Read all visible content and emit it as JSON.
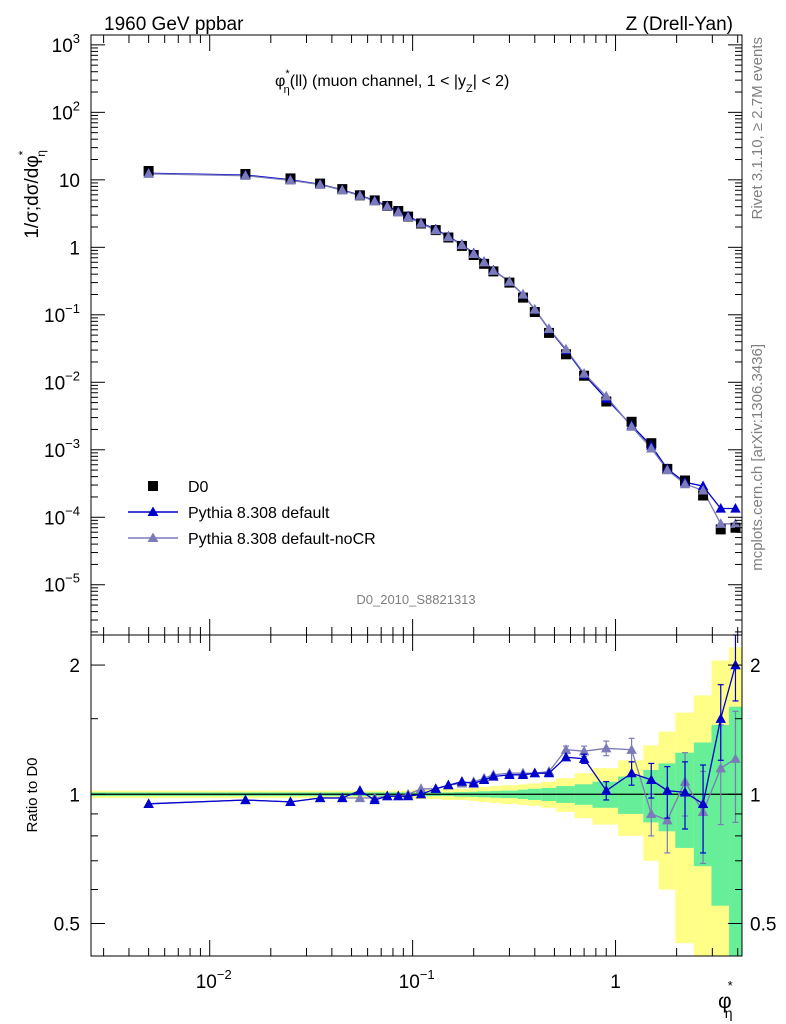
{
  "header": {
    "left": "1960 GeV ppbar",
    "right": "Z (Drell-Yan)"
  },
  "side": {
    "top": "Rivet 3.1.10, ≥ 2.7M events",
    "bottom": "mcplots.cern.ch [arXiv:1306.3436]"
  },
  "chart_data": [
    {
      "type": "scatter",
      "panel": "main",
      "title": "φ*η(ll) (muon channel, 1 < |yZ| < 2)",
      "title_parts": {
        "phi": "φ",
        "star": "*",
        "eta": "η",
        "rest_a": "(ll) (muon channel, 1 < |y",
        "sub_z": "Z",
        "rest_b": "| < 2)"
      },
      "ylabel": "1/σ;dσ/dφ*η",
      "ylabel_parts": {
        "main": "1/σ;dσ/dφ",
        "star": "*",
        "eta": "η"
      },
      "xlabel_parts": {
        "phi": "φ",
        "star": "*",
        "eta": "η"
      },
      "xscale": "log",
      "yscale": "log",
      "xlim": [
        0.0026,
        4.2
      ],
      "ylim": [
        1.8e-06,
        1400.0
      ],
      "y_ticks": [
        {
          "v": 1000.0,
          "base": "10",
          "exp": "3"
        },
        {
          "v": 100.0,
          "base": "10",
          "exp": "2"
        },
        {
          "v": 10,
          "base": "10",
          "exp": ""
        },
        {
          "v": 1,
          "base": "1",
          "exp": ""
        },
        {
          "v": 0.1,
          "base": "10",
          "exp": "−1"
        },
        {
          "v": 0.01,
          "base": "10",
          "exp": "−2"
        },
        {
          "v": 0.001,
          "base": "10",
          "exp": "−3"
        },
        {
          "v": 0.0001,
          "base": "10",
          "exp": "−4"
        },
        {
          "v": 1e-05,
          "base": "10",
          "exp": "−5"
        }
      ],
      "x": [
        0.005,
        0.015,
        0.025,
        0.035,
        0.045,
        0.055,
        0.065,
        0.075,
        0.085,
        0.095,
        0.11,
        0.13,
        0.15,
        0.175,
        0.2,
        0.225,
        0.25,
        0.3,
        0.35,
        0.4,
        0.47,
        0.57,
        0.7,
        0.9,
        1.2,
        1.5,
        1.8,
        2.2,
        2.7,
        3.3,
        3.9
      ],
      "series": [
        {
          "name": "D0",
          "marker": "square",
          "color": "#000000",
          "values": [
            13.5,
            12.2,
            10.5,
            8.8,
            7.3,
            5.9,
            4.95,
            4.1,
            3.45,
            2.85,
            2.25,
            1.8,
            1.4,
            1.05,
            0.77,
            0.57,
            0.44,
            0.3,
            0.18,
            0.11,
            0.054,
            0.026,
            0.0125,
            0.0052,
            0.0026,
            0.00125,
            0.00052,
            0.00035,
            0.00021,
            6.6e-05,
            7e-05
          ]
        },
        {
          "name": "Pythia 8.308 default",
          "marker": "triangle",
          "color": "#0000cc",
          "values": [
            12.5,
            11.8,
            10.0,
            8.6,
            7.1,
            5.9,
            4.9,
            4.1,
            3.4,
            2.9,
            2.3,
            1.85,
            1.45,
            1.1,
            0.82,
            0.61,
            0.46,
            0.31,
            0.2,
            0.12,
            0.061,
            0.03,
            0.013,
            0.0057,
            0.0023,
            0.00115,
            0.00052,
            0.00033,
            0.00029,
            0.000135,
            0.000135
          ]
        },
        {
          "name": "Pythia 8.308 default-noCR",
          "marker": "triangle",
          "color": "#7b7bb9",
          "values": [
            12.3,
            11.5,
            9.8,
            8.5,
            7.0,
            5.8,
            4.8,
            4.0,
            3.3,
            2.8,
            2.25,
            1.8,
            1.42,
            1.08,
            0.8,
            0.6,
            0.45,
            0.31,
            0.2,
            0.12,
            0.062,
            0.031,
            0.0135,
            0.0062,
            0.0022,
            0.00105,
            0.0005,
            0.00031,
            0.00025,
            8e-05,
            8e-05
          ]
        }
      ],
      "legend_position": "bottom-left",
      "annotation": "D0_2010_S8821313"
    },
    {
      "type": "scatter",
      "panel": "ratio",
      "ylabel": "Ratio to D0",
      "xscale": "log",
      "xlim": [
        0.0026,
        4.2
      ],
      "ylim": [
        0.42,
        2.35
      ],
      "y_ticks": [
        {
          "v": 0.5,
          "label": "0.5"
        },
        {
          "v": 1,
          "label": "1"
        },
        {
          "v": 2,
          "label": "2"
        }
      ],
      "x_ticks": [
        {
          "v": 0.01,
          "base": "10",
          "exp": "−2"
        },
        {
          "v": 0.1,
          "base": "10",
          "exp": "−1"
        },
        {
          "v": 1,
          "base": "1",
          "exp": ""
        }
      ],
      "bands": {
        "colors": {
          "stat": "#66ee99",
          "total": "#ffff88"
        },
        "edges": [
          0.0026,
          0.01,
          0.02,
          0.03,
          0.04,
          0.05,
          0.06,
          0.07,
          0.08,
          0.09,
          0.1,
          0.12,
          0.14,
          0.16,
          0.19,
          0.21,
          0.24,
          0.27,
          0.33,
          0.37,
          0.43,
          0.51,
          0.63,
          0.77,
          1.03,
          1.37,
          1.63,
          1.97,
          2.43,
          2.97,
          3.63,
          4.2
        ],
        "inner": [
          0.01,
          0.01,
          0.01,
          0.01,
          0.01,
          0.01,
          0.01,
          0.01,
          0.01,
          0.01,
          0.01,
          0.01,
          0.01,
          0.012,
          0.014,
          0.016,
          0.018,
          0.02,
          0.025,
          0.03,
          0.035,
          0.045,
          0.055,
          0.07,
          0.1,
          0.14,
          0.18,
          0.25,
          0.32,
          0.45,
          0.6
        ],
        "outer": [
          0.02,
          0.02,
          0.02,
          0.02,
          0.02,
          0.02,
          0.02,
          0.02,
          0.02,
          0.02,
          0.025,
          0.025,
          0.03,
          0.03,
          0.035,
          0.04,
          0.045,
          0.05,
          0.055,
          0.06,
          0.07,
          0.09,
          0.12,
          0.15,
          0.2,
          0.3,
          0.4,
          0.55,
          0.7,
          1.05,
          1.2
        ]
      },
      "series": [
        {
          "name": "Pythia 8.308 default",
          "color": "#0000cc",
          "values": [
            0.95,
            0.97,
            0.96,
            0.98,
            0.98,
            1.02,
            0.97,
            0.99,
            0.99,
            0.99,
            1.0,
            1.03,
            1.05,
            1.07,
            1.06,
            1.08,
            1.1,
            1.11,
            1.11,
            1.12,
            1.12,
            1.22,
            1.21,
            1.02,
            1.12,
            1.08,
            1.02,
            1.01,
            0.95,
            1.5,
            2.0
          ],
          "errors": [
            0.003,
            0.003,
            0.003,
            0.003,
            0.003,
            0.003,
            0.003,
            0.003,
            0.004,
            0.004,
            0.004,
            0.005,
            0.005,
            0.006,
            0.006,
            0.007,
            0.008,
            0.009,
            0.01,
            0.012,
            0.015,
            0.02,
            0.03,
            0.05,
            0.07,
            0.1,
            0.14,
            0.18,
            0.22,
            0.3,
            0.35
          ]
        },
        {
          "name": "Pythia 8.308 default-noCR",
          "color": "#7b7bb9",
          "values": [
            0.95,
            0.97,
            0.96,
            0.98,
            0.98,
            0.98,
            0.98,
            0.99,
            0.99,
            1.0,
            1.03,
            1.03,
            1.05,
            1.06,
            1.07,
            1.09,
            1.11,
            1.12,
            1.12,
            1.12,
            1.13,
            1.27,
            1.26,
            1.28,
            1.27,
            0.9,
            0.87,
            1.07,
            0.91,
            1.15,
            1.21
          ],
          "errors": [
            0.003,
            0.003,
            0.003,
            0.003,
            0.003,
            0.003,
            0.003,
            0.003,
            0.004,
            0.004,
            0.004,
            0.005,
            0.005,
            0.006,
            0.006,
            0.007,
            0.008,
            0.009,
            0.01,
            0.012,
            0.015,
            0.025,
            0.035,
            0.05,
            0.08,
            0.1,
            0.14,
            0.18,
            0.22,
            0.3,
            0.35
          ]
        }
      ]
    }
  ]
}
